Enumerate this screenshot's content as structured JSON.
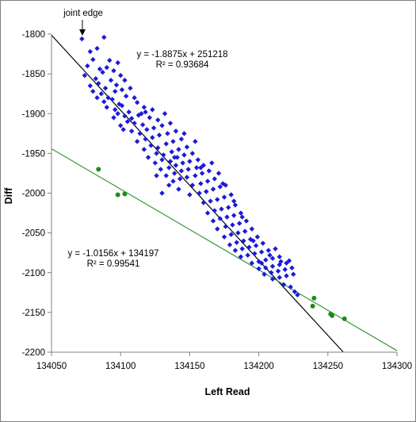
{
  "chart_data": {
    "type": "scatter",
    "title": "",
    "xlabel": "Left Read",
    "ylabel": "Diff",
    "xlim": [
      134050,
      134300
    ],
    "ylim": [
      -2200,
      -1800
    ],
    "xticks": [
      134050,
      134100,
      134150,
      134200,
      134250,
      134300
    ],
    "yticks": [
      -1800,
      -1850,
      -1900,
      -1950,
      -2000,
      -2050,
      -2100,
      -2150,
      -2200
    ],
    "grid": false,
    "annotation": {
      "text": "joint edge",
      "x": 134072,
      "y": -1800
    },
    "series": [
      {
        "color": "#1a1adb",
        "marker": "diamond",
        "trendline": {
          "equation": "y = -1.8875x + 251218",
          "r2": "R² = 0.93684",
          "slope": -1.8875,
          "intercept": 251218,
          "color": "#000000"
        },
        "points": [
          [
            134072,
            -1806
          ],
          [
            134088,
            -1804
          ],
          [
            134078,
            -1822
          ],
          [
            134083,
            -1818
          ],
          [
            134092,
            -1833
          ],
          [
            134098,
            -1836
          ],
          [
            134080,
            -1832
          ],
          [
            134076,
            -1840
          ],
          [
            134085,
            -1844
          ],
          [
            134090,
            -1842
          ],
          [
            134074,
            -1852
          ],
          [
            134082,
            -1856
          ],
          [
            134087,
            -1848
          ],
          [
            134095,
            -1846
          ],
          [
            134100,
            -1852
          ],
          [
            134078,
            -1865
          ],
          [
            134084,
            -1862
          ],
          [
            134089,
            -1868
          ],
          [
            134093,
            -1858
          ],
          [
            134097,
            -1864
          ],
          [
            134103,
            -1858
          ],
          [
            134080,
            -1872
          ],
          [
            134086,
            -1875
          ],
          [
            134091,
            -1880
          ],
          [
            134096,
            -1872
          ],
          [
            134101,
            -1870
          ],
          [
            134107,
            -1868
          ],
          [
            134083,
            -1880
          ],
          [
            134088,
            -1885
          ],
          [
            134094,
            -1882
          ],
          [
            134099,
            -1888
          ],
          [
            134104,
            -1878
          ],
          [
            134110,
            -1880
          ],
          [
            134090,
            -1892
          ],
          [
            134096,
            -1895
          ],
          [
            134101,
            -1890
          ],
          [
            134106,
            -1898
          ],
          [
            134112,
            -1886
          ],
          [
            134117,
            -1892
          ],
          [
            134098,
            -1900
          ],
          [
            134103,
            -1903
          ],
          [
            134108,
            -1906
          ],
          [
            134113,
            -1902
          ],
          [
            134118,
            -1898
          ],
          [
            134123,
            -1895
          ],
          [
            134100,
            -1915
          ],
          [
            134105,
            -1910
          ],
          [
            134110,
            -1912
          ],
          [
            134116,
            -1914
          ],
          [
            134121,
            -1905
          ],
          [
            134127,
            -1908
          ],
          [
            134132,
            -1900
          ],
          [
            134108,
            -1922
          ],
          [
            134114,
            -1925
          ],
          [
            134119,
            -1920
          ],
          [
            134124,
            -1918
          ],
          [
            134130,
            -1915
          ],
          [
            134136,
            -1912
          ],
          [
            134112,
            -1935
          ],
          [
            134118,
            -1932
          ],
          [
            134123,
            -1930
          ],
          [
            134128,
            -1927
          ],
          [
            134134,
            -1925
          ],
          [
            134140,
            -1922
          ],
          [
            134117,
            -1945
          ],
          [
            134122,
            -1940
          ],
          [
            134127,
            -1943
          ],
          [
            134133,
            -1938
          ],
          [
            134138,
            -1935
          ],
          [
            134144,
            -1932
          ],
          [
            134120,
            -1955
          ],
          [
            134126,
            -1950
          ],
          [
            134131,
            -1952
          ],
          [
            134137,
            -1948
          ],
          [
            134142,
            -1945
          ],
          [
            134148,
            -1942
          ],
          [
            134125,
            -1962
          ],
          [
            134130,
            -1958
          ],
          [
            134136,
            -1960
          ],
          [
            134141,
            -1955
          ],
          [
            134146,
            -1952
          ],
          [
            134152,
            -1950
          ],
          [
            134129,
            -1970
          ],
          [
            134135,
            -1968
          ],
          [
            134140,
            -1965
          ],
          [
            134145,
            -1962
          ],
          [
            134150,
            -1960
          ],
          [
            134156,
            -1958
          ],
          [
            134133,
            -1978
          ],
          [
            134139,
            -1975
          ],
          [
            134144,
            -1972
          ],
          [
            134149,
            -1970
          ],
          [
            134155,
            -1968
          ],
          [
            134160,
            -1965
          ],
          [
            134138,
            -1985
          ],
          [
            134143,
            -1982
          ],
          [
            134148,
            -1980
          ],
          [
            134154,
            -1978
          ],
          [
            134159,
            -1975
          ],
          [
            134164,
            -1972
          ],
          [
            134130,
            -2000
          ],
          [
            134142,
            -1995
          ],
          [
            134152,
            -1990
          ],
          [
            134158,
            -1988
          ],
          [
            134163,
            -1985
          ],
          [
            134168,
            -1982
          ],
          [
            134150,
            -2002
          ],
          [
            134157,
            -2000
          ],
          [
            134162,
            -1998
          ],
          [
            134167,
            -1995
          ],
          [
            134172,
            -1992
          ],
          [
            134176,
            -1990
          ],
          [
            134160,
            -2012
          ],
          [
            134165,
            -2010
          ],
          [
            134170,
            -2008
          ],
          [
            134175,
            -2005
          ],
          [
            134180,
            -2002
          ],
          [
            134163,
            -2025
          ],
          [
            134168,
            -2022
          ],
          [
            134173,
            -2020
          ],
          [
            134178,
            -2018
          ],
          [
            134183,
            -2015
          ],
          [
            134167,
            -2035
          ],
          [
            134172,
            -2032
          ],
          [
            134177,
            -2030
          ],
          [
            134182,
            -2028
          ],
          [
            134187,
            -2025
          ],
          [
            134170,
            -2045
          ],
          [
            134176,
            -2042
          ],
          [
            134181,
            -2040
          ],
          [
            134186,
            -2038
          ],
          [
            134191,
            -2035
          ],
          [
            134175,
            -2055
          ],
          [
            134180,
            -2052
          ],
          [
            134185,
            -2050
          ],
          [
            134190,
            -2048
          ],
          [
            134195,
            -2045
          ],
          [
            134179,
            -2065
          ],
          [
            134184,
            -2062
          ],
          [
            134189,
            -2060
          ],
          [
            134194,
            -2058
          ],
          [
            134199,
            -2055
          ],
          [
            134183,
            -2072
          ],
          [
            134188,
            -2070
          ],
          [
            134193,
            -2068
          ],
          [
            134198,
            -2066
          ],
          [
            134203,
            -2063
          ],
          [
            134187,
            -2080
          ],
          [
            134192,
            -2078
          ],
          [
            134197,
            -2076
          ],
          [
            134202,
            -2074
          ],
          [
            134207,
            -2072
          ],
          [
            134195,
            -2088
          ],
          [
            134200,
            -2086
          ],
          [
            134205,
            -2084
          ],
          [
            134210,
            -2082
          ],
          [
            134215,
            -2080
          ],
          [
            134200,
            -2095
          ],
          [
            134205,
            -2094
          ],
          [
            134210,
            -2092
          ],
          [
            134215,
            -2090
          ],
          [
            134220,
            -2088
          ],
          [
            134204,
            -2102
          ],
          [
            134209,
            -2100
          ],
          [
            134214,
            -2098
          ],
          [
            134219,
            -2096
          ],
          [
            134224,
            -2094
          ],
          [
            134210,
            -2108
          ],
          [
            134215,
            -2106
          ],
          [
            134220,
            -2104
          ],
          [
            134225,
            -2102
          ],
          [
            134218,
            -2115
          ],
          [
            134223,
            -2118
          ],
          [
            134226,
            -2124
          ],
          [
            134228,
            -2128
          ],
          [
            134222,
            -2085
          ],
          [
            134166,
            -1962
          ],
          [
            134171,
            -1975
          ],
          [
            134174,
            -1988
          ],
          [
            134154,
            -1935
          ],
          [
            134146,
            -1925
          ],
          [
            134158,
            -1968
          ],
          [
            134139,
            -1955
          ],
          [
            134115,
            -1900
          ],
          [
            134095,
            -1905
          ],
          [
            134102,
            -1920
          ],
          [
            134126,
            -1978
          ],
          [
            134135,
            -1990
          ],
          [
            134182,
            -2010
          ],
          [
            134188,
            -2030
          ],
          [
            134196,
            -2060
          ],
          [
            134202,
            -2088
          ],
          [
            134208,
            -2078
          ],
          [
            134212,
            -2070
          ],
          [
            134216,
            -2086
          ]
        ]
      },
      {
        "color": "#1e8a1e",
        "marker": "circle",
        "trendline": {
          "equation": "y = -1.0156x + 134197",
          "r2": "R² = 0.99541",
          "slope": -1.0156,
          "intercept": 134197,
          "color": "#3a9a3a"
        },
        "points": [
          [
            134084,
            -1970
          ],
          [
            134098,
            -2002
          ],
          [
            134103,
            -2001
          ],
          [
            134240,
            -2132
          ],
          [
            134239,
            -2142
          ],
          [
            134252,
            -2152
          ],
          [
            134253,
            -2154
          ],
          [
            134262,
            -2158
          ]
        ]
      }
    ]
  }
}
